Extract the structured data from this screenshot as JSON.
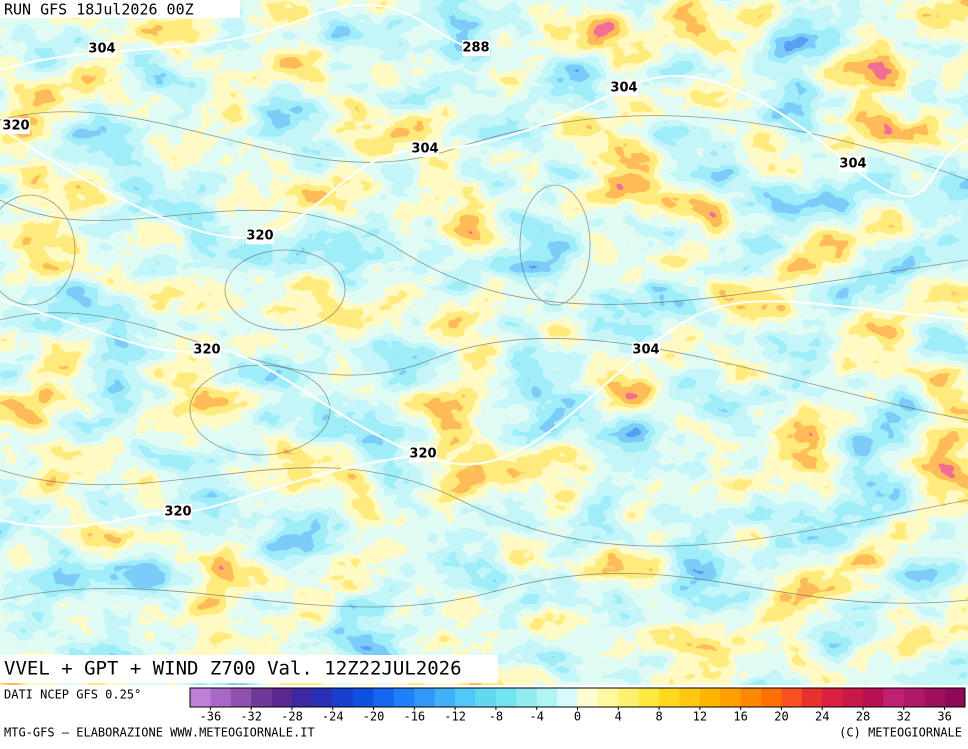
{
  "header": {
    "run": "RUN GFS 18Jul2026 00Z"
  },
  "map": {
    "title": "VVEL + GPT + WIND Z700 Val. 12Z22JUL2026",
    "contour_labels": [
      "304",
      "288",
      "304",
      "320",
      "304",
      "304",
      "320",
      "320",
      "304",
      "320",
      "320"
    ]
  },
  "legend": {
    "source": "DATI NCEP GFS 0.25°",
    "range": [
      -38,
      38
    ],
    "ticks": [
      -36,
      -32,
      -28,
      -24,
      -20,
      -16,
      -12,
      -8,
      -4,
      0,
      4,
      8,
      12,
      16,
      20,
      24,
      28,
      32,
      36
    ],
    "colors": [
      "#c080d8",
      "#a868c8",
      "#9050b0",
      "#703898",
      "#5a2890",
      "#3c28a0",
      "#2830b8",
      "#1840d0",
      "#1050e0",
      "#1468f0",
      "#2080f8",
      "#3098f8",
      "#40b0f8",
      "#50c8f8",
      "#60d8f0",
      "#70e4f0",
      "#90ecf0",
      "#b0f4f4",
      "#d8fafa",
      "#fffcd0",
      "#fff8a0",
      "#fff070",
      "#ffe840",
      "#ffd820",
      "#ffc810",
      "#ffb400",
      "#ffa000",
      "#ff8800",
      "#ff7000",
      "#f85020",
      "#e83030",
      "#d82040",
      "#c81848",
      "#b81050",
      "#c02070",
      "#b01868",
      "#a01060",
      "#900858"
    ]
  },
  "footer": {
    "left": "MTG-GFS – ELABORAZIONE WWW.METEOGIORNALE.IT",
    "right": "(C) METEOGIORNALE"
  }
}
